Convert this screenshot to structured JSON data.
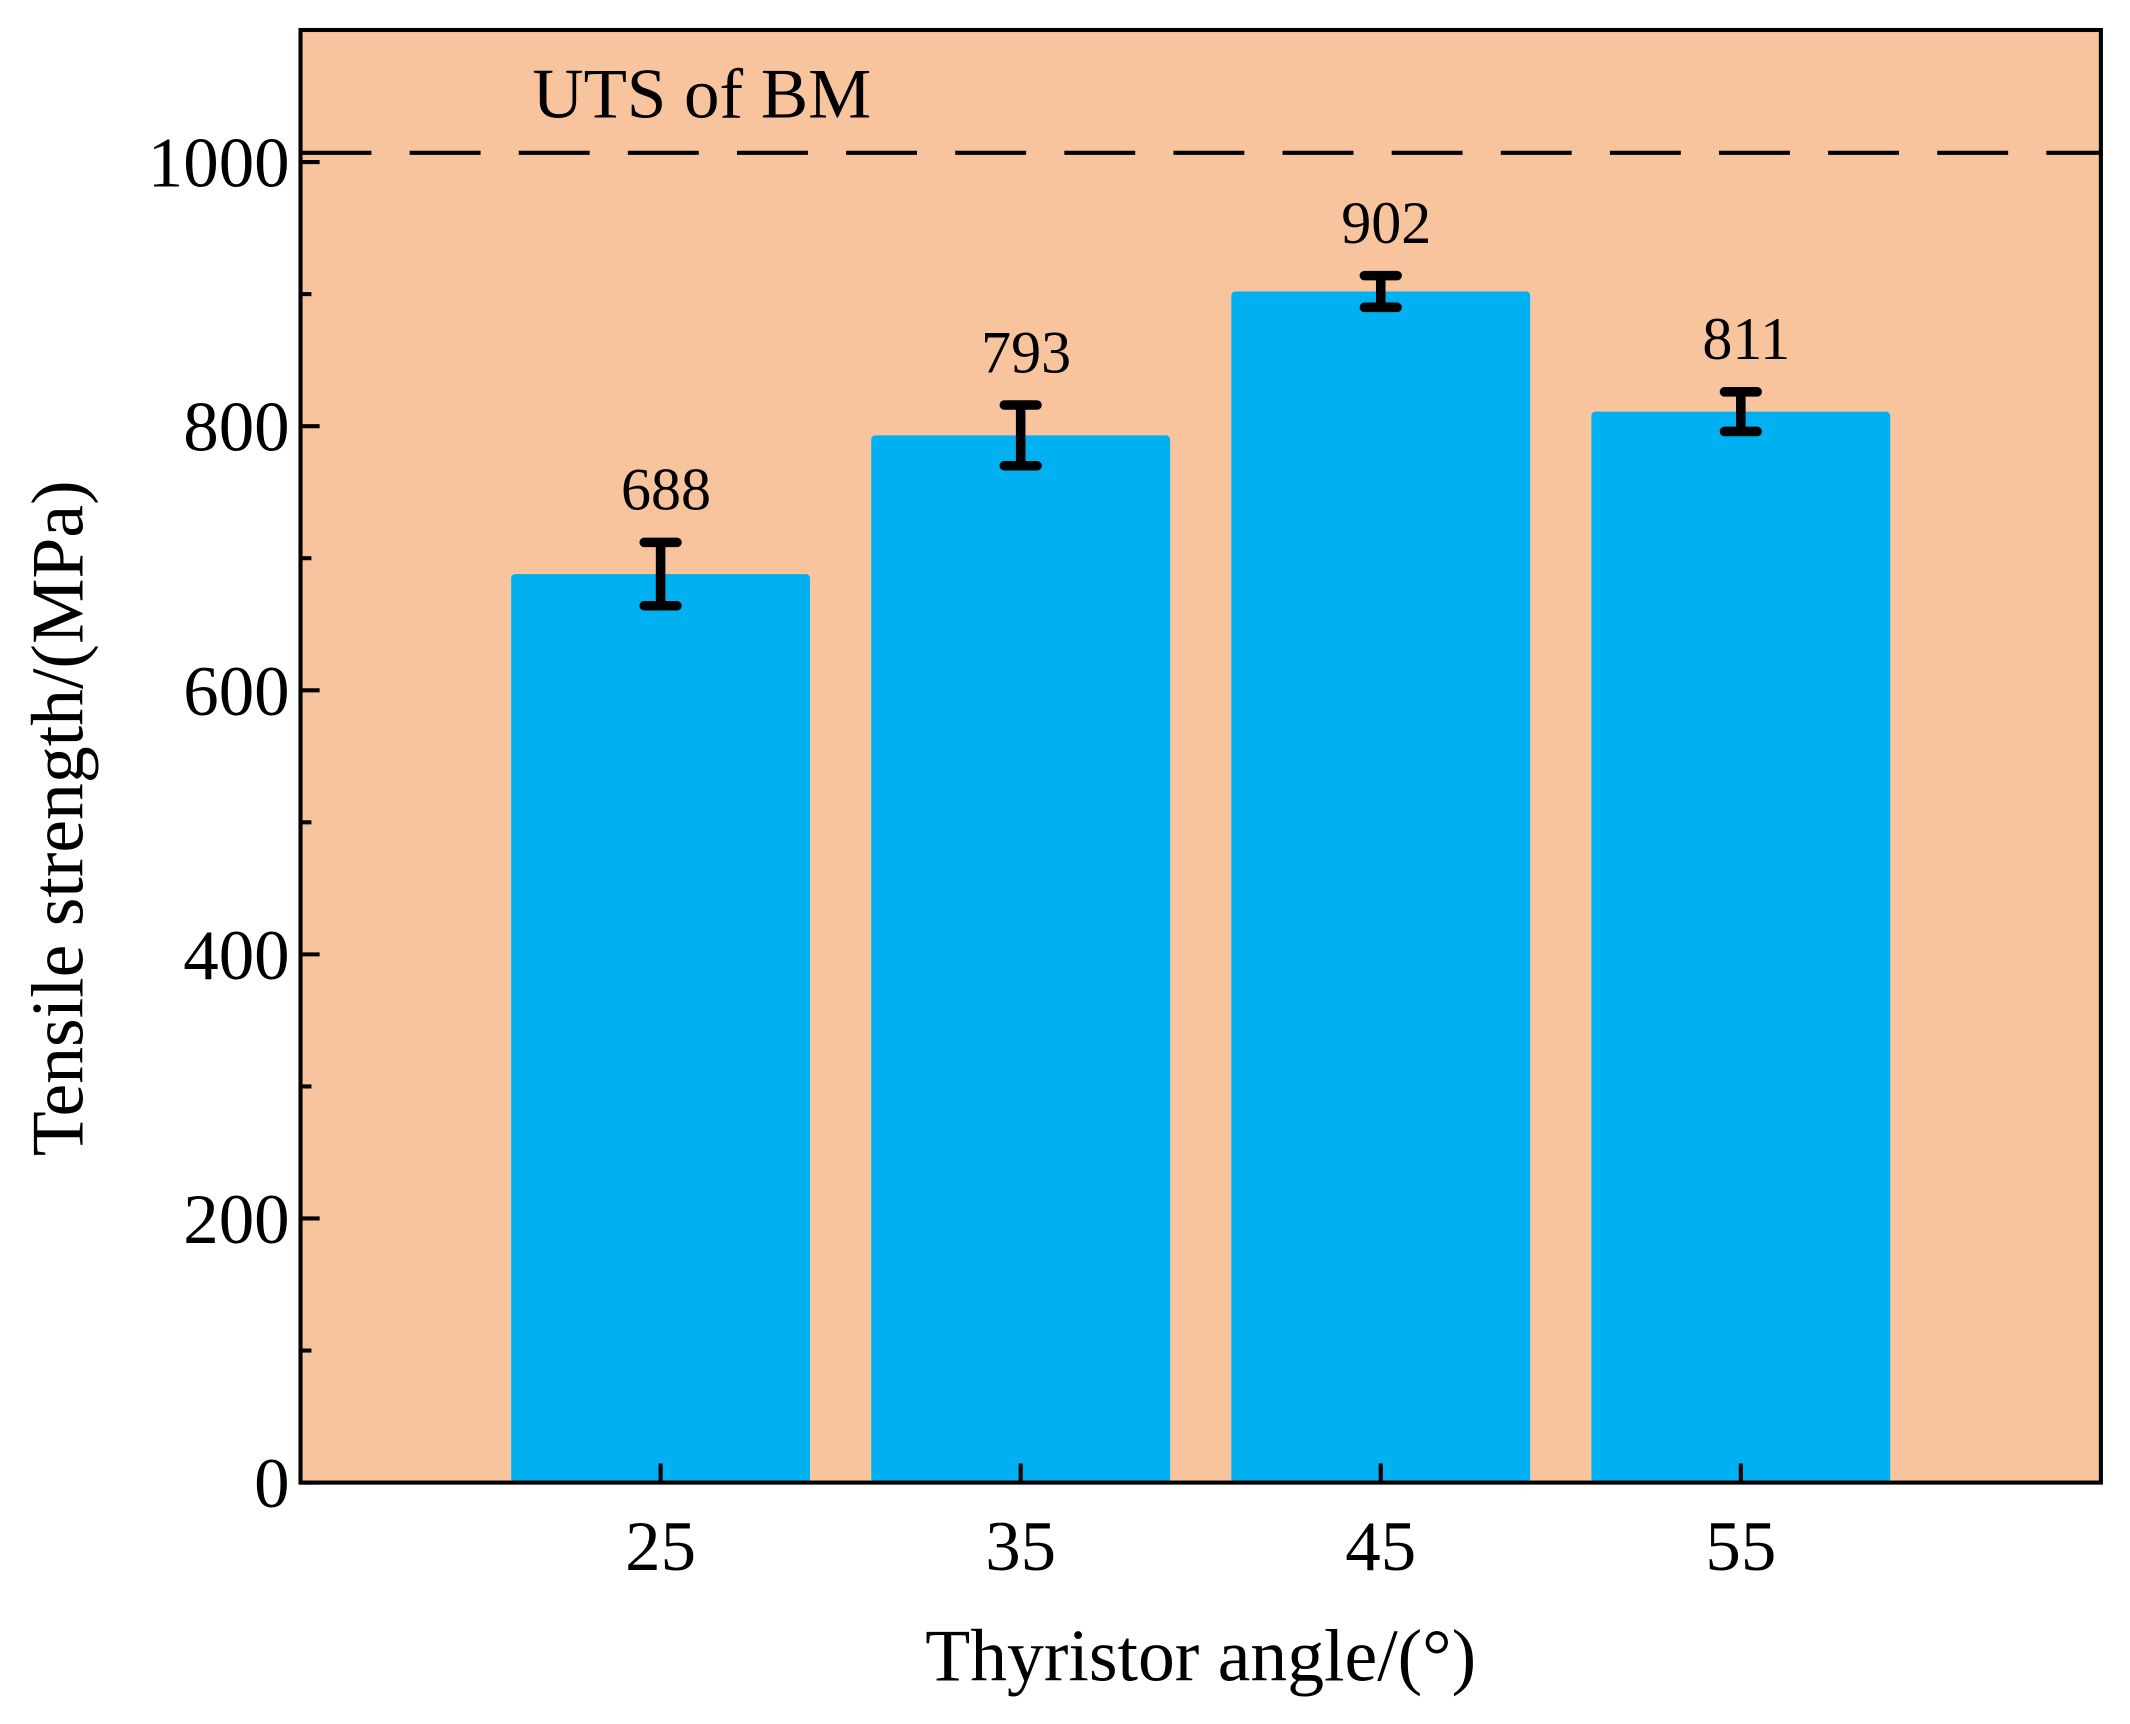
{
  "chart_data": {
    "type": "bar",
    "x_label": "Thyristor angle/(°)",
    "y_label": "Tensile strength/(MPa)",
    "annotation": "UTS of BM",
    "reference_line": 1007,
    "x": [
      25,
      35,
      45,
      55
    ],
    "values": [
      688,
      793,
      902,
      811
    ],
    "errors": [
      24,
      23,
      12,
      15
    ],
    "bar_width": 8.3,
    "color": "#00b0f0",
    "background": "#f8c49e",
    "xlim": [
      15,
      65
    ],
    "xticks": [
      25,
      35,
      45,
      55
    ],
    "ylim": [
      0,
      1100
    ],
    "yticks": [
      0,
      200,
      400,
      600,
      800,
      1000
    ]
  }
}
